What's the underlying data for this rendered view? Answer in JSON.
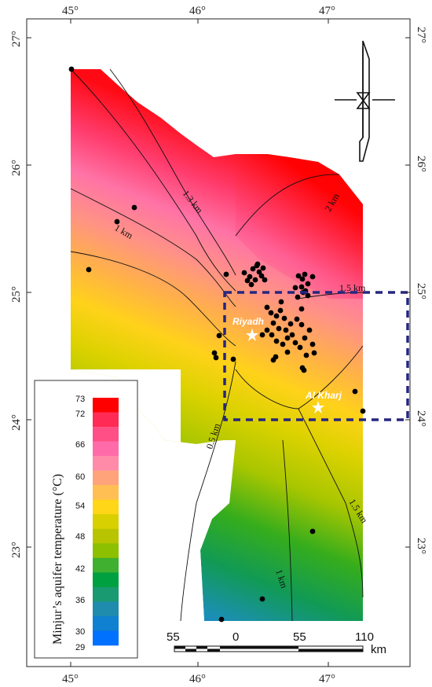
{
  "axes": {
    "top_labels": [
      "45°",
      "46°",
      "47°"
    ],
    "bottom_labels": [
      "45°",
      "46°",
      "47°"
    ],
    "left_labels": [
      "27°",
      "26°",
      "25°",
      "24°",
      "23°"
    ],
    "right_labels": [
      "27°",
      "26°",
      "25°",
      "24°",
      "23°"
    ]
  },
  "legend": {
    "title": "Minjur’s aquifer temperature (°C)",
    "tick_labels": [
      "73",
      "72",
      "66",
      "60",
      "54",
      "48",
      "42",
      "36",
      "30",
      "29"
    ],
    "colors": [
      "#ff0000",
      "#ff2a55",
      "#ff4f86",
      "#ff6ba8",
      "#ff8ba8",
      "#ffa47a",
      "#ffbf52",
      "#ffd618",
      "#d8d000",
      "#b8c400",
      "#8cc000",
      "#3fb030",
      "#00a040",
      "#1a9a70",
      "#1f8cae",
      "#1080d0",
      "#0070ff"
    ]
  },
  "isolines": [
    "1.3 km",
    "2 km",
    "1 km",
    "1.5 km",
    "0.5 km",
    "1.5 km",
    "1 km"
  ],
  "cities": [
    "Riyadh",
    "Al Kharj"
  ],
  "scalebar": {
    "labels": [
      "55",
      "0",
      "55",
      "110"
    ],
    "unit": "km"
  },
  "north_arrow": "north-arrow"
}
